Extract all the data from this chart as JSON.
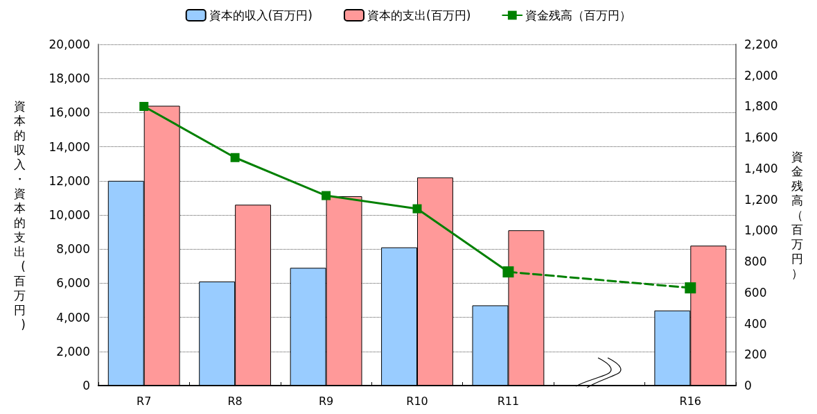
{
  "chart_data": {
    "type": "bar",
    "categories": [
      "R7",
      "R8",
      "R9",
      "R10",
      "R11",
      null,
      "R16"
    ],
    "series": [
      {
        "name": "資本的収入(百万円)",
        "color": "#99ccff",
        "values": [
          12000,
          6100,
          6900,
          8100,
          4700,
          null,
          4400
        ]
      },
      {
        "name": "資本的支出(百万円)",
        "color": "#ff9999",
        "values": [
          16400,
          10600,
          11100,
          12200,
          9100,
          null,
          8200
        ]
      },
      {
        "name": "資金残高（百万円）",
        "type": "line",
        "axis": "y2",
        "color": "#008000",
        "marker": "square",
        "line_style": "solid",
        "values": [
          1800,
          1470,
          1225,
          1140,
          733,
          null,
          null
        ]
      },
      {
        "type": "line",
        "axis": "y2",
        "color": "#008000",
        "marker": "square",
        "line_style": "dashed",
        "values": [
          null,
          null,
          null,
          null,
          733,
          null,
          630
        ]
      }
    ],
    "ylabel": "資本的収入・資本的支出(百万円)",
    "y2label": "資金残高（百万円）",
    "ylim": [
      0,
      20000
    ],
    "yticks": [
      0,
      {
        "value": 2000,
        "label": "2,000"
      },
      {
        "value": 4000,
        "label": "4,000"
      },
      {
        "value": 6000,
        "label": "6,000"
      },
      {
        "value": 8000,
        "label": "8,000"
      },
      {
        "value": 10000,
        "label": "10,000"
      },
      {
        "value": 12000,
        "label": "12,000"
      },
      {
        "value": 14000,
        "label": "14,000"
      },
      {
        "value": 16000,
        "label": "16,000"
      },
      {
        "value": 18000,
        "label": "18,000"
      },
      {
        "value": 20000,
        "label": "20,000"
      }
    ],
    "y2lim": [
      0,
      2200
    ],
    "y2ticks": [
      0,
      200,
      400,
      600,
      800,
      {
        "value": 1000,
        "label": "1,000"
      },
      {
        "value": 1200,
        "label": "1,200"
      },
      {
        "value": 1400,
        "label": "1,400"
      },
      {
        "value": 1600,
        "label": "1,600"
      },
      {
        "value": 1800,
        "label": "1,800"
      },
      {
        "value": 2000,
        "label": "2,000"
      },
      {
        "value": 2200,
        "label": "2,200"
      }
    ],
    "grid": "y",
    "legend": "top"
  }
}
